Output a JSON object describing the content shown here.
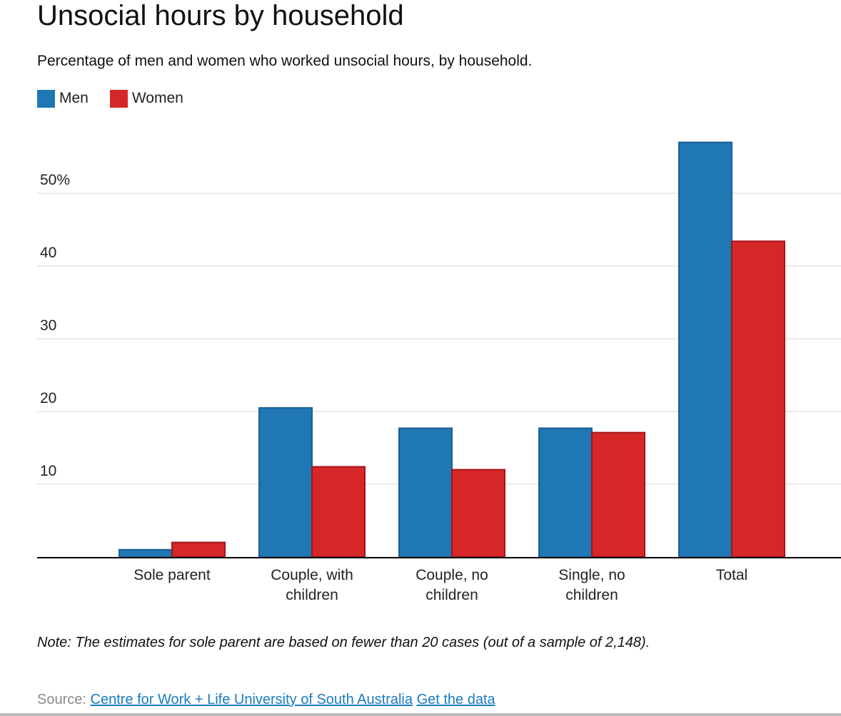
{
  "colors": {
    "men": "#1f77b4",
    "women": "#d62728",
    "men_border": "#1b5f90",
    "women_border": "#a3131a",
    "grid": "#dddddd",
    "axis": "#000000"
  },
  "source": {
    "prefix": "Source:",
    "link_text": "Centre for Work + Life University of South Australia",
    "data_link_text": "Get the data"
  },
  "chart_data": {
    "type": "bar",
    "title": "Unsocial hours by household",
    "subtitle": "Percentage of men and women who worked unsocial hours, by household.",
    "xlabel": "",
    "ylabel": "",
    "categories": [
      [
        "Sole parent"
      ],
      [
        "Couple, with",
        "children"
      ],
      [
        "Couple, no",
        "children"
      ],
      [
        "Single, no",
        "children"
      ],
      [
        "Total"
      ]
    ],
    "series": [
      {
        "name": "Men",
        "values": [
          1.0,
          20.5,
          17.7,
          17.7,
          57.0
        ]
      },
      {
        "name": "Women",
        "values": [
          2.0,
          12.4,
          12.0,
          17.1,
          43.4
        ]
      }
    ],
    "y_ticks": [
      {
        "value": 10,
        "label": "10"
      },
      {
        "value": 20,
        "label": "20"
      },
      {
        "value": 30,
        "label": "30"
      },
      {
        "value": 40,
        "label": "40"
      },
      {
        "value": 50,
        "label": "50%"
      }
    ],
    "ylim": [
      0,
      60
    ],
    "grid": true,
    "legend_position": "top-left",
    "note": "Note: The estimates for sole parent are based on fewer than 20 cases (out of a sample of 2,148)."
  }
}
